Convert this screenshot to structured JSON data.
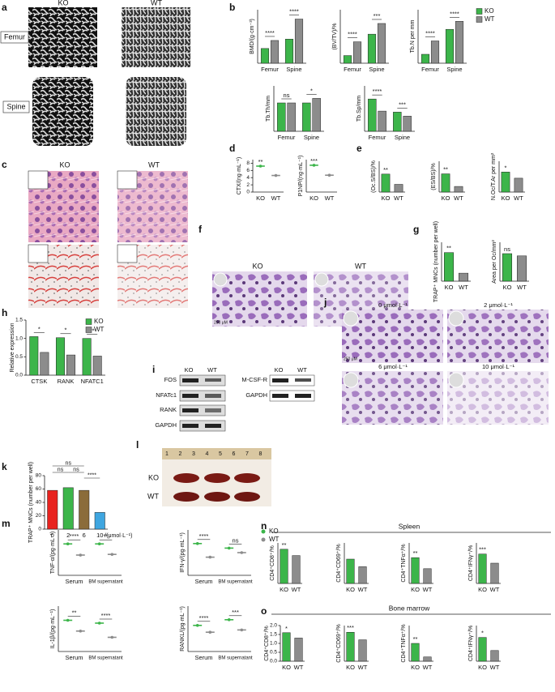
{
  "panel_labels": [
    "a",
    "b",
    "c",
    "d",
    "e",
    "f",
    "g",
    "h",
    "i",
    "j",
    "k",
    "l",
    "m",
    "n",
    "o"
  ],
  "panel_a": {
    "cols": [
      "KO",
      "WT"
    ],
    "rows": [
      "Femur",
      "Spine"
    ]
  },
  "panel_c": {
    "cols": [
      "KO",
      "WT"
    ]
  },
  "panel_f": {
    "cols": [
      "KO",
      "WT"
    ],
    "scale": "250 μM"
  },
  "panel_i": {
    "cols": [
      "KO",
      "WT"
    ],
    "rows": [
      "FOS",
      "NFATc1",
      "RANK",
      "GAPDH"
    ],
    "cols2": [
      "KO",
      "WT"
    ],
    "rows2": [
      "M-CSF-R",
      "GAPDH"
    ]
  },
  "panel_j": {
    "doses": [
      "0 μmol·L⁻¹",
      "2 μmol·L⁻¹",
      "6 μmol·L⁻¹",
      "10 μmol·L⁻¹"
    ],
    "scale": "250 μM"
  },
  "panel_l": {
    "ruler": [
      "1",
      "2",
      "3",
      "4",
      "5",
      "6",
      "7",
      "8"
    ],
    "rows": [
      "KO",
      "WT"
    ]
  },
  "panel_n": {
    "title": "Spleen"
  },
  "panel_o": {
    "title": "Bone marrow"
  },
  "chart_data": [
    {
      "type": "bar",
      "ylabel": "BMD/(g·cm⁻³)",
      "categories": [
        "Femur",
        "Spine"
      ],
      "series": [
        {
          "name": "KO",
          "color": "#3cb54a",
          "values": [
            0.11,
            0.18
          ]
        },
        {
          "name": "WT",
          "color": "#8c8c8c",
          "values": [
            0.17,
            0.33
          ]
        }
      ],
      "ylim": [
        0,
        0.4
      ],
      "annotations": [
        "****",
        "****"
      ]
    },
    {
      "type": "bar",
      "ylabel": "(BV/TV)/%",
      "categories": [
        "Femur",
        "Spine"
      ],
      "series": [
        {
          "name": "KO",
          "color": "#3cb54a",
          "values": [
            5,
            19
          ]
        },
        {
          "name": "WT",
          "color": "#8c8c8c",
          "values": [
            14,
            26
          ]
        }
      ],
      "ylim": [
        0,
        35
      ],
      "annotations": [
        "****",
        "***"
      ]
    },
    {
      "type": "bar",
      "ylabel": "Tb.N per mm",
      "categories": [
        "Femur",
        "Spine"
      ],
      "series": [
        {
          "name": "KO",
          "color": "#3cb54a",
          "values": [
            1.0,
            3.8
          ]
        },
        {
          "name": "WT",
          "color": "#8c8c8c",
          "values": [
            2.5,
            4.7
          ]
        }
      ],
      "ylim": [
        0,
        6
      ],
      "annotations": [
        "****",
        "****"
      ],
      "legend": "right"
    },
    {
      "type": "bar",
      "ylabel": "Tb.Th/mm",
      "categories": [
        "Femur",
        "Spine"
      ],
      "series": [
        {
          "name": "KO",
          "color": "#3cb54a",
          "values": [
            0.05,
            0.05
          ]
        },
        {
          "name": "WT",
          "color": "#8c8c8c",
          "values": [
            0.05,
            0.058
          ]
        }
      ],
      "ylim": [
        0,
        0.08
      ],
      "annotations": [
        "ns",
        "*"
      ]
    },
    {
      "type": "bar",
      "ylabel": "Tb.Sp/mm",
      "categories": [
        "Femur",
        "Spine"
      ],
      "series": [
        {
          "name": "KO",
          "color": "#3cb54a",
          "values": [
            0.32,
            0.19
          ]
        },
        {
          "name": "WT",
          "color": "#8c8c8c",
          "values": [
            0.2,
            0.15
          ]
        }
      ],
      "ylim": [
        0,
        0.45
      ],
      "annotations": [
        "****",
        "***"
      ]
    },
    {
      "type": "dot",
      "ylabel": "CTX/(ng·mL⁻¹)",
      "categories": [
        "KO",
        "WT"
      ],
      "values": [
        7.2,
        4.6
      ],
      "colors": [
        "#3cb54a",
        "#8c8c8c"
      ],
      "ylim": [
        0,
        9
      ],
      "yticks": [
        0,
        2,
        4,
        6,
        8
      ],
      "annotation": "**"
    },
    {
      "type": "dot",
      "ylabel": "P1NP/(ng·mL⁻¹)",
      "categories": [
        "KO",
        "WT"
      ],
      "values": [
        62,
        39
      ],
      "colors": [
        "#3cb54a",
        "#8c8c8c"
      ],
      "ylim": [
        0,
        75
      ],
      "annotation": "***"
    },
    {
      "type": "bar",
      "ylabel": "(Oc.S/BS)/%",
      "categories": [
        "KO",
        "WT"
      ],
      "values": [
        3.5,
        1.5
      ],
      "colors": [
        "#3cb54a",
        "#8c8c8c"
      ],
      "ylim": [
        0,
        6
      ],
      "annotation": "**"
    },
    {
      "type": "bar",
      "ylabel": "(ES/BS)/%",
      "categories": [
        "KO",
        "WT"
      ],
      "values": [
        6.5,
        2.0
      ],
      "colors": [
        "#3cb54a",
        "#8c8c8c"
      ],
      "ylim": [
        0,
        11
      ],
      "annotation": "**"
    },
    {
      "type": "bar",
      "ylabel": "N.Oc/T.Ar per mm²",
      "categories": [
        "KO",
        "WT"
      ],
      "values": [
        65,
        45
      ],
      "colors": [
        "#3cb54a",
        "#8c8c8c"
      ],
      "ylim": [
        0,
        100
      ],
      "annotation": "*"
    },
    {
      "type": "bar",
      "ylabel": "TRAP⁺ MNCs (number per well)",
      "categories": [
        "KO",
        "WT"
      ],
      "values": [
        125,
        35
      ],
      "colors": [
        "#3cb54a",
        "#8c8c8c"
      ],
      "ylim": [
        0,
        170
      ],
      "annotation": "**"
    },
    {
      "type": "bar",
      "ylabel": "Area per Oc/mm²",
      "categories": [
        "KO",
        "WT"
      ],
      "values": [
        0.085,
        0.078
      ],
      "colors": [
        "#3cb54a",
        "#8c8c8c"
      ],
      "ylim": [
        0,
        0.12
      ],
      "annotation": "ns"
    },
    {
      "type": "bar",
      "ylabel": "Relative expression",
      "categories": [
        "CTSK",
        "RANK",
        "NFATC1"
      ],
      "series": [
        {
          "name": "KO",
          "color": "#3cb54a",
          "values": [
            1.05,
            1.02,
            1.0
          ]
        },
        {
          "name": "WT",
          "color": "#8c8c8c",
          "values": [
            0.62,
            0.55,
            0.52
          ]
        }
      ],
      "ylim": [
        0,
        1.5
      ],
      "yticks": [
        {
          "value": 0,
          "label": "0.0"
        },
        {
          "value": 0.5,
          "label": "0.5"
        },
        {
          "value": 1,
          "label": "1.0"
        },
        {
          "value": 1.5,
          "label": "1.5"
        }
      ],
      "annotations": [
        "*",
        "*",
        "**"
      ],
      "legend": "upper right"
    },
    {
      "type": "bar",
      "ylabel": "TRAP⁺ MNCs (number per well)",
      "categories": [
        "0",
        "2",
        "6",
        "10"
      ],
      "xlabel": "/(μmol·L⁻¹)",
      "values": [
        58,
        62,
        58,
        25
      ],
      "colors": [
        "#e8231f",
        "#3cb54a",
        "#8b6c3a",
        "#3fa6e0"
      ],
      "ylim": [
        0,
        80
      ],
      "yticks": [
        0,
        20,
        40,
        60,
        80
      ],
      "annotations": [
        "ns",
        "ns",
        "ns",
        "****"
      ]
    },
    {
      "type": "dot",
      "ylabel": "TNF-α/(pg·mL⁻¹)",
      "categories": [
        "Serum",
        "BM supernatant"
      ],
      "series": [
        {
          "name": "KO",
          "color": "#3cb54a",
          "values": [
            450,
            450
          ]
        },
        {
          "name": "WT",
          "color": "#8c8c8c",
          "values": [
            290,
            300
          ]
        }
      ],
      "ylim": [
        0,
        650
      ],
      "annotations": [
        "****",
        "**"
      ]
    },
    {
      "type": "dot",
      "ylabel": "IFN-γ/(pg·mL⁻¹)",
      "categories": [
        "Serum",
        "BM supernatant"
      ],
      "series": [
        {
          "name": "KO",
          "color": "#3cb54a",
          "values": [
            560,
            480
          ]
        },
        {
          "name": "WT",
          "color": "#8c8c8c",
          "values": [
            320,
            400
          ]
        }
      ],
      "ylim": [
        0,
        800
      ],
      "annotations": [
        "****",
        "ns"
      ],
      "legend": "right"
    },
    {
      "type": "dot",
      "ylabel": "IL-1β/(pg·mL⁻¹)",
      "categories": [
        "Serum",
        "BM supernatant"
      ],
      "series": [
        {
          "name": "KO",
          "color": "#3cb54a",
          "values": [
            110,
            100
          ]
        },
        {
          "name": "WT",
          "color": "#8c8c8c",
          "values": [
            72,
            50
          ]
        }
      ],
      "ylim": [
        0,
        160
      ],
      "annotations": [
        "**",
        "****"
      ]
    },
    {
      "type": "dot",
      "ylabel": "RANKL/(pg·mL⁻¹)",
      "categories": [
        "Serum",
        "BM supernatant"
      ],
      "series": [
        {
          "name": "KO",
          "color": "#3cb54a",
          "values": [
            115,
            140
          ]
        },
        {
          "name": "WT",
          "color": "#8c8c8c",
          "values": [
            85,
            95
          ]
        }
      ],
      "ylim": [
        0,
        200
      ],
      "annotations": [
        "****",
        "***"
      ]
    },
    {
      "type": "bar",
      "ylabel": "CD4⁺CD8⁺/%",
      "categories": [
        "KO",
        "WT"
      ],
      "values": [
        27,
        22
      ],
      "colors": [
        "#3cb54a",
        "#8c8c8c"
      ],
      "ylim": [
        0,
        32
      ],
      "annotation": "**"
    },
    {
      "type": "bar",
      "ylabel": "CD4⁺CD69⁺/%",
      "categories": [
        "KO",
        "WT"
      ],
      "values": [
        4.8,
        3.3
      ],
      "colors": [
        "#3cb54a",
        "#8c8c8c"
      ],
      "ylim": [
        0,
        8
      ]
    },
    {
      "type": "bar",
      "ylabel": "CD4⁺TNFα⁺/%",
      "categories": [
        "KO",
        "WT"
      ],
      "values": [
        14,
        8
      ],
      "colors": [
        "#3cb54a",
        "#8c8c8c"
      ],
      "ylim": [
        0,
        22
      ],
      "annotation": "**"
    },
    {
      "type": "bar",
      "ylabel": "CD4⁺IFNγ⁺/%",
      "categories": [
        "KO",
        "WT"
      ],
      "values": [
        1.45,
        1.0
      ],
      "colors": [
        "#3cb54a",
        "#8c8c8c"
      ],
      "ylim": [
        0,
        2
      ],
      "annotation": "***"
    },
    {
      "type": "bar",
      "ylabel": "CD4⁺CD8⁺/%",
      "categories": [
        "KO",
        "WT"
      ],
      "values": [
        1.6,
        1.3
      ],
      "colors": [
        "#3cb54a",
        "#8c8c8c"
      ],
      "ylim": [
        0,
        2
      ],
      "yticks": [
        {
          "value": 0,
          "label": "0.0"
        },
        {
          "value": 0.5,
          "label": "0.5"
        },
        {
          "value": 1,
          "label": "1.0"
        },
        {
          "value": 1.5,
          "label": "1.5"
        },
        {
          "value": 2,
          "label": "2.0"
        }
      ],
      "annotation": "*"
    },
    {
      "type": "bar",
      "ylabel": "CD4⁺CD69⁺/%",
      "categories": [
        "KO",
        "WT"
      ],
      "values": [
        0.65,
        0.48
      ],
      "colors": [
        "#3cb54a",
        "#8c8c8c"
      ],
      "ylim": [
        0,
        0.8
      ],
      "annotation": "***"
    },
    {
      "type": "bar",
      "ylabel": "CD4⁺TNFα⁺/%",
      "categories": [
        "KO",
        "WT"
      ],
      "values": [
        0.5,
        0.12
      ],
      "colors": [
        "#3cb54a",
        "#8c8c8c"
      ],
      "ylim": [
        0,
        1
      ],
      "annotation": "**"
    },
    {
      "type": "bar",
      "ylabel": "CD4⁺IFNγ⁺/%",
      "categories": [
        "KO",
        "WT"
      ],
      "values": [
        0.4,
        0.18
      ],
      "colors": [
        "#3cb54a",
        "#8c8c8c"
      ],
      "ylim": [
        0,
        0.6
      ],
      "annotation": "*"
    }
  ]
}
